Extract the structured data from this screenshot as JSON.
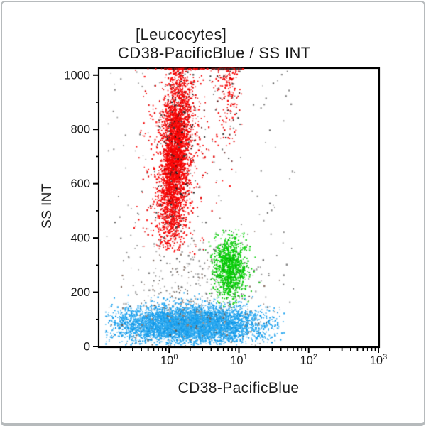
{
  "panel": {
    "title_line1": "[Leucocytes]",
    "title_line2": "CD38-PacificBlue / SS INT"
  },
  "chart_data": {
    "type": "scatter",
    "subtype": "flow-cytometry-dot-plot",
    "title": "[Leucocytes]",
    "subtitle": "CD38-PacificBlue / SS INT",
    "xlabel": "CD38-PacificBlue",
    "ylabel": "SS INT",
    "x_scale": "log",
    "y_scale": "linear",
    "xlim": [
      0.1,
      1000
    ],
    "ylim": [
      0,
      1023
    ],
    "grid": false,
    "legend": "none",
    "x_tick_labels": [
      "10⁰",
      "10¹",
      "10²",
      "10³"
    ],
    "x_tick_base": "10",
    "x_tick_exponents": [
      "0",
      "1",
      "2",
      "3"
    ],
    "x_major_ticks_log10": [
      0,
      1,
      2,
      3
    ],
    "x_minor_decades_log10": [
      -1,
      0,
      1,
      2
    ],
    "y_tick_labels": [
      "0",
      "200",
      "400",
      "600",
      "800",
      "1000"
    ],
    "y_major_ticks": [
      0,
      200,
      400,
      600,
      800,
      1000
    ],
    "y_minor_step": 100,
    "populations": [
      {
        "name": "lymphocytes-left",
        "role": "lymphocytes (CD38 low/mid, SS low)",
        "colors": [
          "#189fee",
          "#2aa8f0",
          "#0f95e5",
          "#45b4f2"
        ],
        "n": 3000,
        "dist": "gauss",
        "x_log10_mean": 0.02,
        "x_log10_sd": 0.42,
        "x_log10_clip": [
          -0.92,
          1.65
        ],
        "y_mean": 82,
        "y_sd": 34,
        "y_clip": [
          5,
          210
        ],
        "pile_top": false,
        "lean": 0
      },
      {
        "name": "lymphocytes-right",
        "role": "lymphocytes (CD38 low/mid, SS low)",
        "colors": [
          "#189fee",
          "#2aa8f0",
          "#0f95e5",
          "#45b4f2"
        ],
        "n": 2400,
        "dist": "gauss",
        "x_log10_mean": 0.62,
        "x_log10_sd": 0.42,
        "x_log10_clip": [
          -0.92,
          1.65
        ],
        "y_mean": 82,
        "y_sd": 34,
        "y_clip": [
          5,
          210
        ],
        "pile_top": false,
        "lean": 0
      },
      {
        "name": "debris-low",
        "role": "debris / ungated events",
        "colors": [
          "#9a9a9a",
          "#7d7d7d",
          "#b0b0b0",
          "#8a7468",
          "#555555"
        ],
        "n": 430,
        "dist": "gauss",
        "x_log10_mean": 0.35,
        "x_log10_sd": 0.55,
        "x_log10_clip": [
          -0.9,
          1.7
        ],
        "y_mean": 190,
        "y_sd": 115,
        "y_clip": [
          2,
          520
        ],
        "pile_top": false,
        "lean": 0
      },
      {
        "name": "debris-scatter",
        "role": "sparse background events",
        "colors": [
          "#9a9a9a",
          "#848484",
          "#6b6b6b"
        ],
        "n": 170,
        "dist": "uniform",
        "x_log10_range": [
          -0.9,
          1.8
        ],
        "y_range": [
          0,
          1015
        ],
        "pile_top": false
      },
      {
        "name": "monocytes",
        "role": "monocytes (CD38+, SS mid)",
        "colors": [
          "#00cc00",
          "#0ad00a",
          "#00b800",
          "#12d412"
        ],
        "n": 1050,
        "dist": "gauss",
        "x_log10_mean": 0.87,
        "x_log10_sd": 0.115,
        "x_log10_clip": [
          0.42,
          1.38
        ],
        "y_mean": 292,
        "y_sd": 55,
        "y_clip": [
          140,
          460
        ],
        "pile_top": false,
        "lean": 0
      },
      {
        "name": "granulocytes-halo",
        "role": "granulocytes scatter halo",
        "colors": [
          "#f30000",
          "#ff1a1a",
          "#e00000"
        ],
        "n": 750,
        "dist": "gauss",
        "x_log10_mean": 0.1,
        "x_log10_sd": 0.23,
        "x_log10_clip": [
          -0.52,
          0.92
        ],
        "y_mean": 680,
        "y_sd": 215,
        "y_clip": [
          340,
          1023
        ],
        "pile_top": true,
        "lean": 0.00022
      },
      {
        "name": "granulocytes-core",
        "role": "granulocytes (CD38 dim, SS high)",
        "colors": [
          "#f30000",
          "#ff0d0d",
          "#ea0000"
        ],
        "n": 3300,
        "dist": "gauss",
        "x_log10_mean": 0.09,
        "x_log10_sd": 0.095,
        "x_log10_clip": [
          -0.35,
          0.62
        ],
        "y_mean": 700,
        "y_sd": 165,
        "y_clip": [
          352,
          1023
        ],
        "pile_top": true,
        "lean": 0.00022
      },
      {
        "name": "granulocytes-cd38hi",
        "role": "CD38-bright high-SS events",
        "colors": [
          "#f30000",
          "#ff1a1a",
          "#e00000"
        ],
        "n": 430,
        "dist": "gauss",
        "x_log10_mean": 0.85,
        "x_log10_sd": 0.085,
        "x_log10_clip": [
          0.55,
          1.18
        ],
        "y_mean": 1085,
        "y_sd": 190,
        "y_clip": [
          585,
          1023
        ],
        "pile_top": true,
        "lean": 0
      },
      {
        "name": "dark-specks-core",
        "role": "saturated/dark events in granulocyte column",
        "colors": [
          "#1e1e1e",
          "#3c3c3c",
          "#5b1a1a"
        ],
        "n": 190,
        "dist": "gauss",
        "x_log10_mean": 0.12,
        "x_log10_sd": 0.14,
        "x_log10_clip": [
          -0.4,
          0.7
        ],
        "y_mean": 730,
        "y_sd": 195,
        "y_clip": [
          400,
          1023
        ],
        "pile_top": true,
        "lean": 0.00022
      },
      {
        "name": "dark-specks-cd38hi",
        "role": "saturated/dark events CD38-bright",
        "colors": [
          "#1e1e1e",
          "#3c3c3c",
          "#5b1a1a"
        ],
        "n": 80,
        "dist": "gauss",
        "x_log10_mean": 0.85,
        "x_log10_sd": 0.1,
        "x_log10_clip": [
          0.5,
          1.2
        ],
        "y_mean": 1060,
        "y_sd": 200,
        "y_clip": [
          560,
          1023
        ],
        "pile_top": true,
        "lean": 0
      }
    ]
  },
  "colors": {
    "frame": "#000000",
    "text": "#1b1b1b",
    "page_border": "#b6babc",
    "background": "#ffffff",
    "granulocytes_red": "#f30000",
    "monocytes_green": "#00cc00",
    "lymphocytes_blue": "#189fee"
  }
}
